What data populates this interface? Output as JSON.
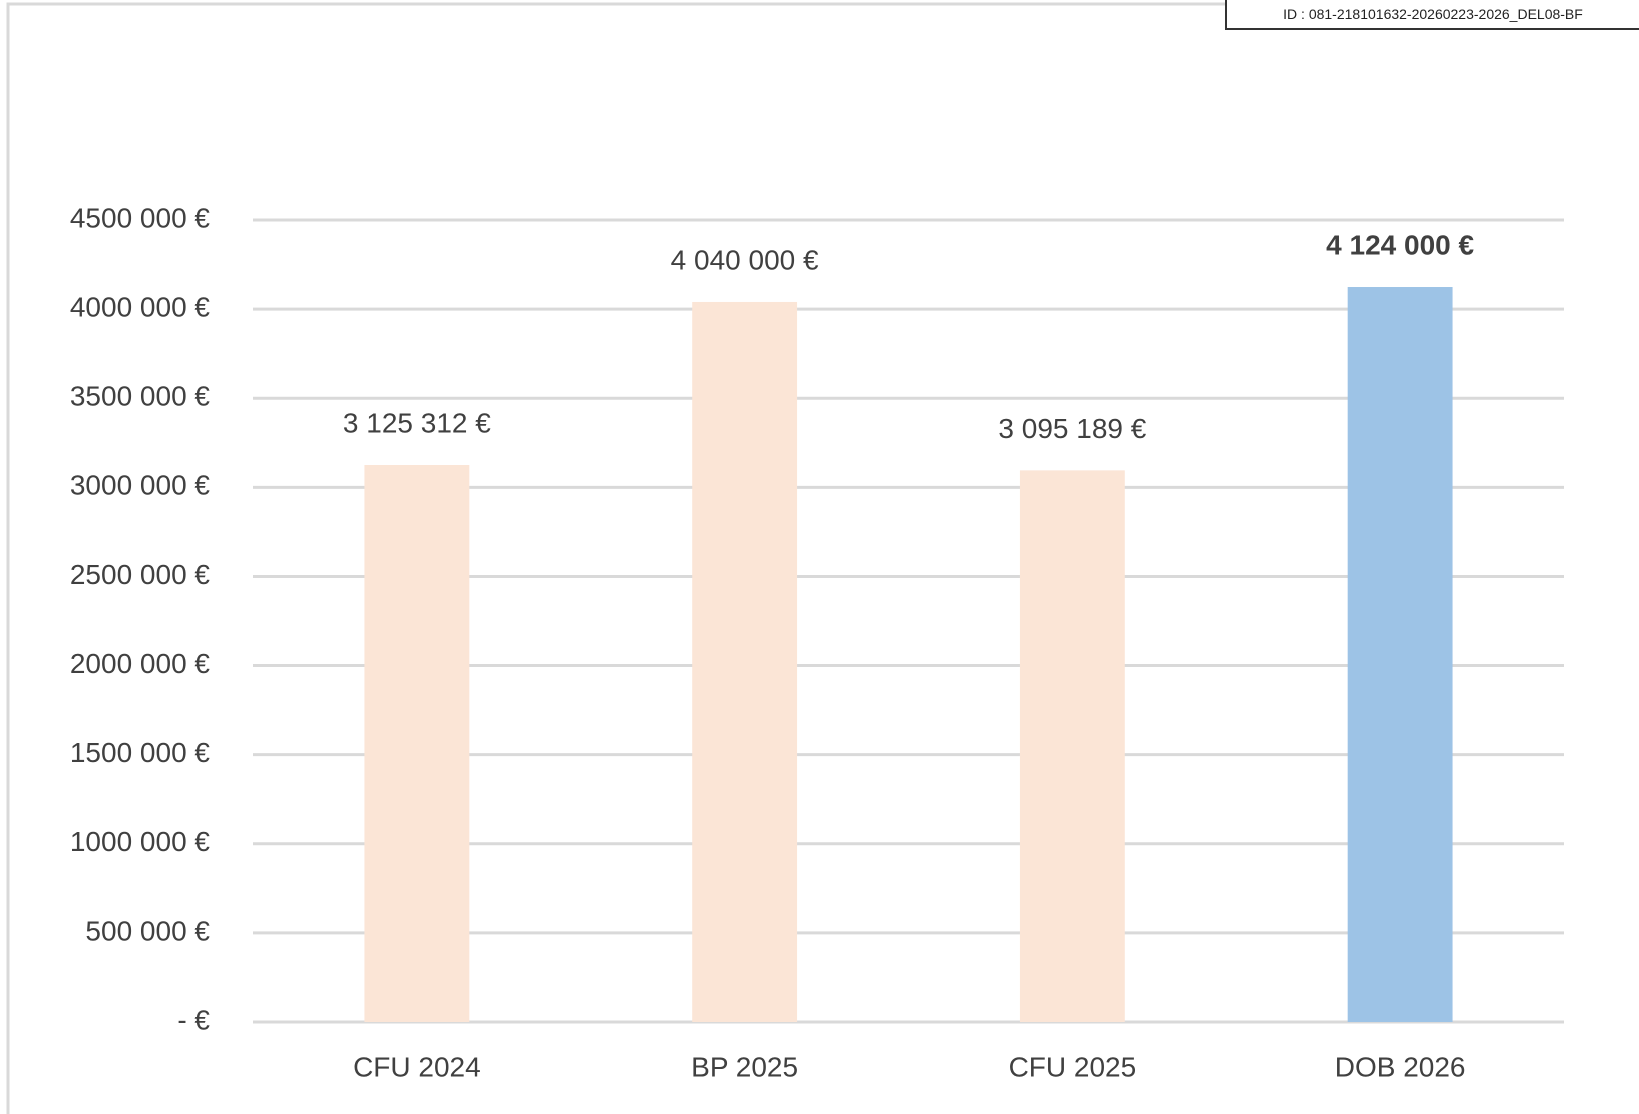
{
  "stamp": "ID : 081-218101632-20260223-2026_DEL08-BF",
  "chart_data": {
    "type": "bar",
    "categories": [
      "CFU 2024",
      "BP 2025",
      "CFU 2025",
      "DOB 2026"
    ],
    "values": [
      3125312,
      4040000,
      3095189,
      4124000
    ],
    "value_labels": [
      "3 125 312 €",
      "4 040 000 €",
      "3 095 189 €",
      "4 124 000 €"
    ],
    "value_label_bold": [
      false,
      false,
      false,
      true
    ],
    "colors": [
      "#fbe5d6",
      "#fbe5d6",
      "#fbe5d6",
      "#9dc3e6"
    ],
    "ylim": [
      0,
      4500000
    ],
    "yticks": [
      {
        "value": 0,
        "label": "-   €"
      },
      {
        "value": 500000,
        "label": "500 000 €"
      },
      {
        "value": 1000000,
        "label": "1000 000 €"
      },
      {
        "value": 1500000,
        "label": "1500 000 €"
      },
      {
        "value": 2000000,
        "label": "2000 000 €"
      },
      {
        "value": 2500000,
        "label": "2500 000 €"
      },
      {
        "value": 3000000,
        "label": "3000 000 €"
      },
      {
        "value": 3500000,
        "label": "3500 000 €"
      },
      {
        "value": 4000000,
        "label": "4000 000 €"
      },
      {
        "value": 4500000,
        "label": "4500 000 €"
      }
    ],
    "grid": true
  }
}
